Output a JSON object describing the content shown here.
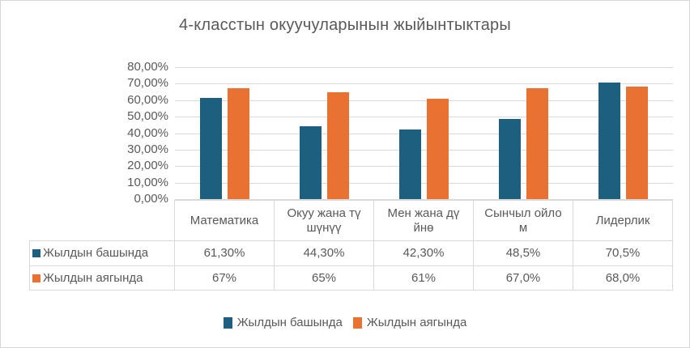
{
  "title": "4-класстын окуучуларынын жыйынтыктары",
  "colors": {
    "series1": "#1C5F7F",
    "series2": "#E97132",
    "gridline": "#D9D9D9",
    "table_border": "#D9D9D9",
    "text": "#595959"
  },
  "chart_data": {
    "type": "bar",
    "title": "4-класстын окуучуларынын жыйынтыктары",
    "categories": [
      "Математика",
      "Окуу жана түшүнүү",
      "Мен жана дүйнө",
      "Сынчыл ойлом",
      "Лидерлик"
    ],
    "series": [
      {
        "name": "Жылдын башында",
        "color": "#1C5F7F",
        "values": [
          61.3,
          44.3,
          42.3,
          48.5,
          70.5
        ]
      },
      {
        "name": "Жылдын аягында",
        "color": "#E97132",
        "values": [
          67,
          65,
          61,
          67,
          68
        ]
      }
    ],
    "ylim": [
      0,
      80
    ],
    "ytick_labels": [
      "80,00%",
      "70,00%",
      "60,00%",
      "50,00%",
      "40,00%",
      "30,00%",
      "20,00%",
      "10,00%",
      "0,00%"
    ],
    "grid": true,
    "legend_position": "bottom"
  },
  "table": {
    "header_display": [
      "Математика",
      "Окуу жана тү\nшүнүү",
      "Мен жана дү\nйнө",
      "Сынчыл ойло\nм",
      "Лидерлик"
    ],
    "rows": [
      {
        "label": "Жылдын башында",
        "marker_color": "#1C5F7F",
        "values": [
          "61,30%",
          "44,30%",
          "42,30%",
          "48,5%",
          "70,5%"
        ]
      },
      {
        "label": "Жылдын аягында",
        "marker_color": "#E97132",
        "values": [
          "67%",
          "65%",
          "61%",
          "67,0%",
          "68,0%"
        ]
      }
    ]
  },
  "legend": [
    {
      "label": "Жылдын башында",
      "color": "#1C5F7F"
    },
    {
      "label": "Жылдын аягында",
      "color": "#E97132"
    }
  ]
}
